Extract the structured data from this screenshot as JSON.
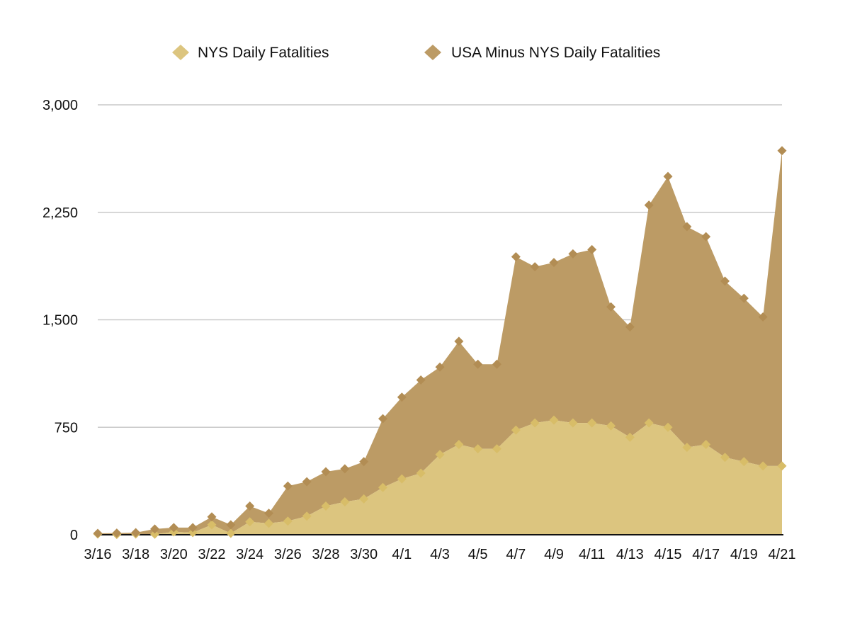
{
  "chart_data": {
    "type": "area",
    "stacked": true,
    "title": "",
    "xlabel": "",
    "ylabel": "",
    "ylim": [
      0,
      3000
    ],
    "yticks": [
      0,
      750,
      1500,
      2250,
      3000
    ],
    "ytick_labels": [
      "0",
      "750",
      "1,500",
      "2,250",
      "3,000"
    ],
    "grid": true,
    "legend_position": "top-center",
    "categories": [
      "3/16",
      "3/17",
      "3/18",
      "3/19",
      "3/20",
      "3/21",
      "3/22",
      "3/23",
      "3/24",
      "3/25",
      "3/26",
      "3/27",
      "3/28",
      "3/29",
      "3/30",
      "3/31",
      "4/1",
      "4/2",
      "4/3",
      "4/4",
      "4/5",
      "4/6",
      "4/7",
      "4/8",
      "4/9",
      "4/10",
      "4/11",
      "4/12",
      "4/13",
      "4/14",
      "4/15",
      "4/16",
      "4/17",
      "4/18",
      "4/19",
      "4/20",
      "4/21"
    ],
    "xtick_labels": [
      "3/16",
      "3/18",
      "3/20",
      "3/22",
      "3/24",
      "3/26",
      "3/28",
      "3/30",
      "4/1",
      "4/3",
      "4/5",
      "4/7",
      "4/9",
      "4/11",
      "4/13",
      "4/15",
      "4/17",
      "4/19",
      "4/21"
    ],
    "series": [
      {
        "name": "NYS Daily Fatalities",
        "color": "#dcc57f",
        "marker_color": "#d8bd68",
        "values": [
          5,
          2,
          5,
          4,
          20,
          15,
          70,
          10,
          90,
          80,
          95,
          130,
          200,
          230,
          250,
          330,
          390,
          430,
          560,
          630,
          600,
          600,
          730,
          780,
          800,
          780,
          780,
          760,
          680,
          780,
          750,
          610,
          630,
          540,
          510,
          480,
          480
        ]
      },
      {
        "name": "USA Minus NYS Daily Fatalities",
        "color": "#bc9b65",
        "marker_color": "#b28d54",
        "values": [
          5,
          10,
          10,
          36,
          30,
          35,
          55,
          60,
          110,
          70,
          245,
          240,
          240,
          230,
          260,
          480,
          570,
          650,
          610,
          720,
          590,
          590,
          1210,
          1090,
          1100,
          1180,
          1210,
          830,
          770,
          1520,
          1750,
          1540,
          1450,
          1230,
          1140,
          1040,
          2200
        ]
      }
    ]
  }
}
